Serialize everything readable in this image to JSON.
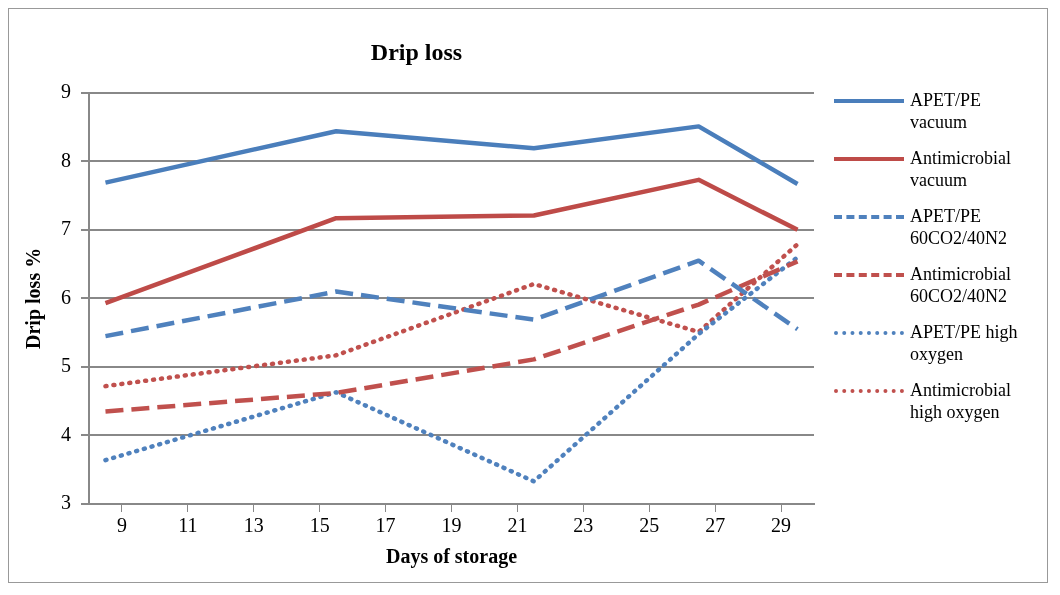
{
  "chart_data": {
    "type": "line",
    "title": "Drip loss",
    "xlabel": "Days of storage",
    "ylabel": "Drip loss %",
    "x": [
      8.5,
      15.5,
      21.5,
      26.5,
      29.5
    ],
    "xlim": [
      8,
      30
    ],
    "xticks": [
      9,
      11,
      13,
      15,
      17,
      19,
      21,
      23,
      25,
      27,
      29
    ],
    "ylim": [
      3,
      9
    ],
    "yticks": [
      3,
      4,
      5,
      6,
      7,
      8,
      9
    ],
    "grid": "y",
    "legend": "right",
    "marker": "none",
    "series": [
      {
        "name": "APET/PE vacuum",
        "color": "#4a7ebb",
        "line_style": "solid",
        "values": [
          7.69,
          8.44,
          8.19,
          8.51,
          7.67
        ]
      },
      {
        "name": "Antimicrobial vacuum",
        "color": "#be4b48",
        "line_style": "solid",
        "values": [
          5.93,
          7.17,
          7.21,
          7.73,
          7.0
        ]
      },
      {
        "name": "APET/PE 60CO2/40N2",
        "color": "#4f81bd",
        "line_style": "dashed",
        "values": [
          5.45,
          6.1,
          5.69,
          6.55,
          5.55
        ]
      },
      {
        "name": "Antimicrobial 60CO2/40N2",
        "color": "#c0504d",
        "line_style": "dashed",
        "values": [
          4.35,
          4.62,
          5.11,
          5.91,
          6.54
        ]
      },
      {
        "name": "APET/PE high oxygen",
        "color": "#4f81bd",
        "line_style": "dotted",
        "values": [
          3.64,
          4.63,
          3.33,
          5.48,
          6.6
        ]
      },
      {
        "name": "Antimicrobial high oxygen",
        "color": "#c0504d",
        "line_style": "dotted",
        "values": [
          4.72,
          5.17,
          6.21,
          5.51,
          6.79
        ]
      }
    ]
  }
}
